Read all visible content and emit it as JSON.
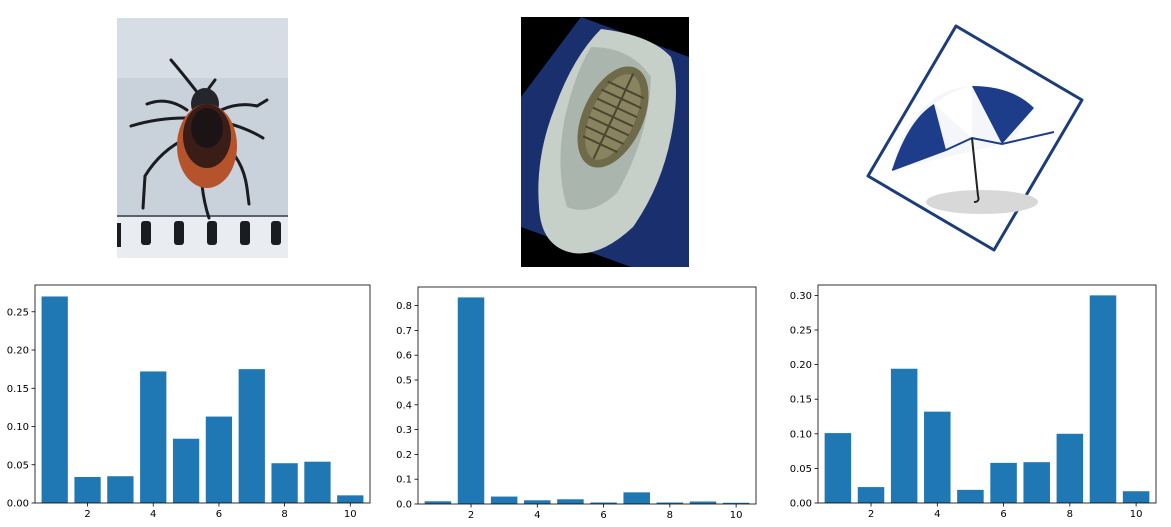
{
  "images": [
    {
      "subject": "tick",
      "icon": "tick-photo-icon"
    },
    {
      "subject": "trilobite fossil",
      "icon": "trilobite-photo-icon"
    },
    {
      "subject": "umbrella",
      "icon": "umbrella-photo-icon"
    }
  ],
  "colors": {
    "bar": "#1f77b4",
    "axis": "#000000",
    "background": "#ffffff"
  },
  "chart_data": [
    {
      "type": "bar",
      "x": [
        1,
        2,
        3,
        4,
        5,
        6,
        7,
        8,
        9,
        10
      ],
      "values": [
        0.27,
        0.034,
        0.035,
        0.172,
        0.084,
        0.113,
        0.175,
        0.052,
        0.054,
        0.01
      ],
      "xticks": [
        "2",
        "4",
        "6",
        "8",
        "10"
      ],
      "yticks": [
        "0.00",
        "0.05",
        "0.10",
        "0.15",
        "0.20",
        "0.25"
      ],
      "ylim": [
        0,
        0.285
      ],
      "xlim": [
        0.4,
        10.6
      ],
      "grid": false
    },
    {
      "type": "bar",
      "x": [
        1,
        2,
        3,
        4,
        5,
        6,
        7,
        8,
        9,
        10
      ],
      "values": [
        0.011,
        0.833,
        0.03,
        0.015,
        0.019,
        0.006,
        0.047,
        0.006,
        0.01,
        0.005
      ],
      "xticks": [
        "2",
        "4",
        "6",
        "8",
        "10"
      ],
      "yticks": [
        "0.0",
        "0.1",
        "0.2",
        "0.3",
        "0.4",
        "0.5",
        "0.6",
        "0.7",
        "0.8"
      ],
      "ylim": [
        0,
        0.875
      ],
      "xlim": [
        0.4,
        10.6
      ],
      "grid": false
    },
    {
      "type": "bar",
      "x": [
        1,
        2,
        3,
        4,
        5,
        6,
        7,
        8,
        9,
        10
      ],
      "values": [
        0.101,
        0.023,
        0.194,
        0.132,
        0.019,
        0.058,
        0.059,
        0.1,
        0.3,
        0.017
      ],
      "xticks": [
        "2",
        "4",
        "6",
        "8",
        "10"
      ],
      "yticks": [
        "0.00",
        "0.05",
        "0.10",
        "0.15",
        "0.20",
        "0.25",
        "0.30"
      ],
      "ylim": [
        0,
        0.315
      ],
      "xlim": [
        0.4,
        10.6
      ],
      "grid": false
    }
  ]
}
